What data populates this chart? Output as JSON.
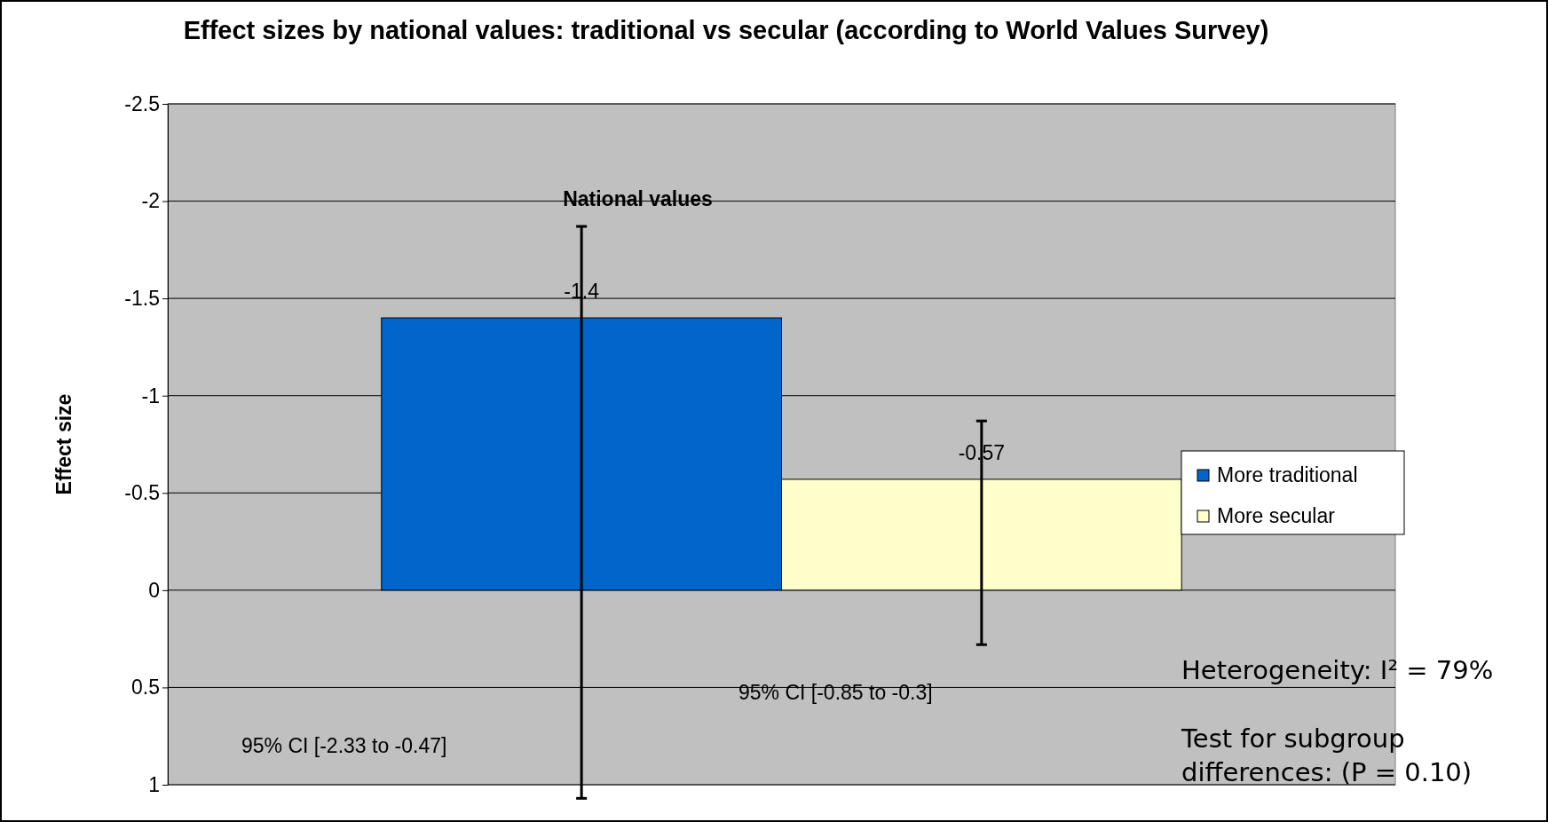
{
  "chart_data": {
    "type": "bar",
    "title": "Effect sizes by national values: traditional vs secular  (according to World Values Survey)",
    "ylabel": "Effect size",
    "categories": [
      "National values"
    ],
    "series": [
      {
        "name": "More traditional",
        "color": "#0066cc",
        "values": [
          -1.4
        ],
        "errors": [
          [
            -1.87,
            1.07
          ]
        ]
      },
      {
        "name": "More secular",
        "color": "#ffffcc",
        "values": [
          -0.57
        ],
        "errors": [
          [
            -0.87,
            0.28
          ]
        ]
      }
    ],
    "ylim": [
      1,
      -2.5
    ],
    "yticks": [
      -2.5,
      -2,
      -1.5,
      -1,
      -0.5,
      0,
      0.5,
      1
    ],
    "grid": "y",
    "legend": "right",
    "data_labels": true,
    "annotations": [
      "95% CI [-2.33 to -0.47]",
      "95% CI [-0.85 to -0.3]",
      "Heterogeneity: I² = 79%",
      "Test for subgroup differences: (P = 0.10)"
    ]
  }
}
